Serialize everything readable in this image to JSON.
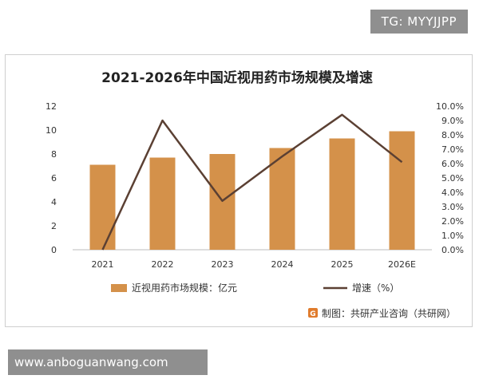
{
  "overlays": {
    "top_badge": "TG: MYYJJPP",
    "bottom_badge": "www.anboguanwang.com"
  },
  "chart_data": {
    "type": "bar",
    "title": "2021-2026年中国近视用药市场规模及增速",
    "categories": [
      "2021",
      "2022",
      "2023",
      "2024",
      "2025",
      "2026E"
    ],
    "series": [
      {
        "name": "近视用药市场规模：亿元",
        "type": "bar",
        "axis": "left",
        "color": "#d4914a",
        "values": [
          7.1,
          7.7,
          8.0,
          8.5,
          9.3,
          9.9
        ]
      },
      {
        "name": "增速（%）",
        "type": "line",
        "axis": "right",
        "color": "#5b4033",
        "values": [
          0.0,
          9.0,
          3.4,
          6.5,
          9.4,
          6.1
        ]
      }
    ],
    "y_left": {
      "min": 0,
      "max": 12,
      "ticks": [
        "0",
        "2",
        "4",
        "6",
        "8",
        "10",
        "12"
      ]
    },
    "y_right": {
      "min": 0,
      "max": 10,
      "ticks": [
        "0.0%",
        "1.0%",
        "2.0%",
        "3.0%",
        "4.0%",
        "5.0%",
        "6.0%",
        "7.0%",
        "8.0%",
        "9.0%",
        "10.0%"
      ]
    },
    "grid": false,
    "legend_position": "bottom",
    "source": "制图：共研产业咨询（共研网）"
  }
}
